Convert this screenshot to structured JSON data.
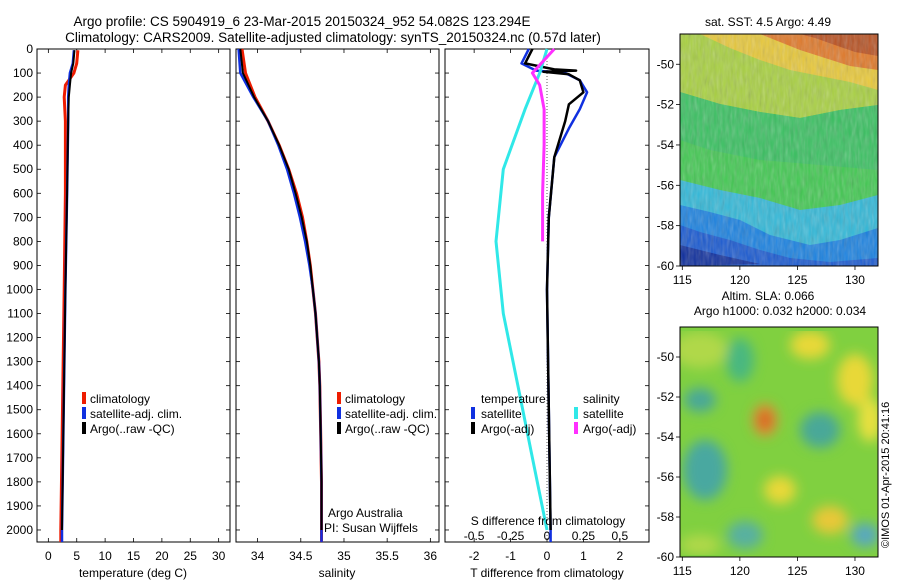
{
  "header": {
    "title_line1": "Argo profile: CS 5904919_6 23-Mar-2015 20150324_952 54.082S 123.294E",
    "title_line2": "Climatology: CARS2009. Satellite-adjusted climatology: synTS_20150324.nc (0.57d later)"
  },
  "colors": {
    "climatology": "#ee1c00",
    "satellite": "#1030e0",
    "argo": "#000000",
    "satellite_s": "#30e8e8",
    "argo_s": "#ff30ff"
  },
  "legends": {
    "profile": [
      "climatology",
      "satellite-adj. clim.",
      "Argo(..raw -QC)"
    ],
    "diff_temp_header": "temperature",
    "diff_sal_header": "salinity",
    "diff_satellite": "satellite",
    "diff_argo": "Argo(-adj)"
  },
  "annotations": {
    "argo_australia": "Argo Australia",
    "pi": "PI: Susan Wijffels",
    "sst_title": "sat. SST: 4.5 Argo: 4.49",
    "sla_title1": "Altim. SLA: 0.066",
    "sla_title2": "Argo h1000: 0.032 h2000: 0.034",
    "imos_stamp": "©IMOS 01-Apr-2015 20:41:16"
  },
  "chart_data": [
    {
      "type": "line",
      "id": "temperature",
      "xlabel": "temperature (deg C)",
      "ylabel": "",
      "xlim": [
        -2,
        32
      ],
      "ylim": [
        2050,
        0
      ],
      "xticks": [
        0,
        5,
        10,
        15,
        20,
        25,
        30
      ],
      "yticks": [
        0,
        100,
        200,
        300,
        400,
        500,
        600,
        700,
        800,
        900,
        1000,
        1100,
        1200,
        1300,
        1400,
        1500,
        1600,
        1700,
        1800,
        1900,
        2000
      ],
      "series": [
        {
          "name": "climatology",
          "color": "#ee1c00",
          "points": [
            [
              5.2,
              5
            ],
            [
              5.0,
              60
            ],
            [
              4.5,
              100
            ],
            [
              3.0,
              150
            ],
            [
              2.8,
              200
            ],
            [
              3.0,
              300
            ],
            [
              3.0,
              600
            ],
            [
              2.8,
              1000
            ],
            [
              2.5,
              1500
            ],
            [
              2.2,
              2000
            ],
            [
              2.2,
              2050
            ]
          ]
        },
        {
          "name": "satellite-adj. clim.",
          "color": "#1030e0",
          "points": [
            [
              4.5,
              5
            ],
            [
              4.3,
              60
            ],
            [
              3.8,
              100
            ],
            [
              3.6,
              150
            ],
            [
              3.5,
              200
            ],
            [
              3.5,
              300
            ],
            [
              3.3,
              600
            ],
            [
              3.0,
              1000
            ],
            [
              2.7,
              1500
            ],
            [
              2.4,
              2000
            ],
            [
              2.4,
              2050
            ]
          ]
        },
        {
          "name": "Argo(..raw -QC)",
          "color": "#000000",
          "points": [
            [
              4.6,
              5
            ],
            [
              4.4,
              60
            ],
            [
              4.0,
              100
            ],
            [
              3.8,
              150
            ],
            [
              3.6,
              200
            ],
            [
              3.5,
              300
            ],
            [
              3.3,
              600
            ],
            [
              3.0,
              1000
            ],
            [
              2.7,
              1500
            ],
            [
              2.4,
              2000
            ]
          ]
        }
      ]
    },
    {
      "type": "line",
      "id": "salinity",
      "xlabel": "salinity",
      "ylabel": "",
      "xlim": [
        33.75,
        36.1
      ],
      "ylim": [
        2050,
        0
      ],
      "xticks": [
        34,
        34.5,
        35,
        35.5,
        36
      ],
      "series": [
        {
          "name": "climatology",
          "color": "#ee1c00",
          "points": [
            [
              33.82,
              0
            ],
            [
              33.86,
              100
            ],
            [
              33.97,
              200
            ],
            [
              34.12,
              300
            ],
            [
              34.25,
              400
            ],
            [
              34.36,
              500
            ],
            [
              34.45,
              600
            ],
            [
              34.52,
              700
            ],
            [
              34.57,
              800
            ],
            [
              34.61,
              900
            ],
            [
              34.64,
              1000
            ],
            [
              34.67,
              1100
            ],
            [
              34.69,
              1200
            ],
            [
              34.71,
              1300
            ],
            [
              34.72,
              1400
            ],
            [
              34.73,
              1600
            ],
            [
              34.74,
              1800
            ],
            [
              34.74,
              2000
            ],
            [
              34.74,
              2050
            ]
          ]
        },
        {
          "name": "satellite-adj. clim.",
          "color": "#1030e0",
          "points": [
            [
              33.78,
              0
            ],
            [
              33.8,
              100
            ],
            [
              33.95,
              200
            ],
            [
              34.12,
              300
            ],
            [
              34.24,
              400
            ],
            [
              34.34,
              500
            ],
            [
              34.42,
              600
            ],
            [
              34.49,
              700
            ],
            [
              34.55,
              800
            ],
            [
              34.6,
              900
            ],
            [
              34.64,
              1000
            ],
            [
              34.67,
              1100
            ],
            [
              34.69,
              1200
            ],
            [
              34.71,
              1300
            ],
            [
              34.72,
              1400
            ],
            [
              34.73,
              1600
            ],
            [
              34.74,
              1800
            ],
            [
              34.74,
              2000
            ],
            [
              34.74,
              2050
            ]
          ]
        },
        {
          "name": "Argo(..raw -QC)",
          "color": "#000000",
          "points": [
            [
              33.8,
              0
            ],
            [
              33.83,
              100
            ],
            [
              33.96,
              200
            ],
            [
              34.12,
              300
            ],
            [
              34.25,
              400
            ],
            [
              34.36,
              500
            ],
            [
              34.44,
              600
            ],
            [
              34.51,
              700
            ],
            [
              34.57,
              800
            ],
            [
              34.61,
              900
            ],
            [
              34.64,
              1000
            ],
            [
              34.67,
              1100
            ],
            [
              34.69,
              1200
            ],
            [
              34.71,
              1300
            ],
            [
              34.72,
              1400
            ],
            [
              34.73,
              1600
            ],
            [
              34.74,
              1800
            ],
            [
              34.74,
              2000
            ]
          ]
        }
      ]
    },
    {
      "type": "line",
      "id": "difference",
      "xlabel": "T difference from climatology",
      "xlabel_top": "S difference from climatology",
      "ylabel": "",
      "xlim": [
        -2.8,
        2.8
      ],
      "ylim": [
        2050,
        0
      ],
      "xticks_t": [
        -2,
        -1,
        0,
        1,
        2
      ],
      "xticks_s": [
        -0.5,
        -0.25,
        0,
        0.25,
        0.5
      ],
      "series": [
        {
          "name": "temperature satellite",
          "color": "#1030e0",
          "points": [
            [
              -0.5,
              0
            ],
            [
              -0.7,
              60
            ],
            [
              -0.3,
              90
            ],
            [
              0.5,
              100
            ],
            [
              0.9,
              130
            ],
            [
              1.1,
              180
            ],
            [
              0.9,
              250
            ],
            [
              0.6,
              330
            ],
            [
              0.2,
              450
            ],
            [
              0.05,
              700
            ],
            [
              0.0,
              1000
            ],
            [
              0.05,
              1500
            ],
            [
              0.1,
              2000
            ],
            [
              0.1,
              2050
            ]
          ]
        },
        {
          "name": "temperature Argo(-adj)",
          "color": "#000000",
          "points": [
            [
              -0.4,
              0
            ],
            [
              -0.6,
              60
            ],
            [
              0.2,
              85
            ],
            [
              0.8,
              90
            ],
            [
              -0.1,
              95
            ],
            [
              0.6,
              105
            ],
            [
              0.9,
              130
            ],
            [
              1.0,
              180
            ],
            [
              0.6,
              230
            ],
            [
              0.5,
              300
            ],
            [
              0.2,
              450
            ],
            [
              0.05,
              700
            ],
            [
              0.0,
              1000
            ],
            [
              0.05,
              1500
            ],
            [
              0.1,
              2000
            ]
          ]
        },
        {
          "name": "salinity satellite",
          "color": "#30e8e8",
          "points": [
            [
              0.0,
              0
            ],
            [
              -0.05,
              100
            ],
            [
              -0.15,
              250
            ],
            [
              -0.3,
              500
            ],
            [
              -0.35,
              800
            ],
            [
              -0.3,
              1100
            ],
            [
              -0.2,
              1400
            ],
            [
              -0.1,
              1700
            ],
            [
              0.0,
              2000
            ]
          ]
        },
        {
          "name": "salinity Argo(-adj)",
          "color": "#ff30ff",
          "points": [
            [
              0.05,
              0
            ],
            [
              -0.1,
              100
            ],
            [
              -0.05,
              150
            ],
            [
              -0.02,
              250
            ],
            [
              -0.02,
              400
            ],
            [
              -0.03,
              600
            ],
            [
              -0.03,
              800
            ]
          ]
        }
      ]
    },
    {
      "type": "heatmap",
      "id": "sst_map",
      "title": "sat. SST: 4.5 Argo: 4.49",
      "xlim": [
        114.8,
        132
      ],
      "ylim": [
        -60,
        -48.5
      ],
      "xticks": [
        115,
        120,
        125,
        130
      ],
      "yticks": [
        -50,
        -52,
        -54,
        -56,
        -58,
        -60
      ]
    },
    {
      "type": "heatmap",
      "id": "sla_map",
      "title": "Altim. SLA: 0.066",
      "subtitle": "Argo h1000: 0.032 h2000: 0.034",
      "xlim": [
        114.8,
        132
      ],
      "ylim": [
        -60,
        -48.5
      ],
      "xticks": [
        115,
        120,
        125,
        130
      ],
      "yticks": [
        -50,
        -52,
        -54,
        -56,
        -58,
        -60
      ]
    }
  ]
}
